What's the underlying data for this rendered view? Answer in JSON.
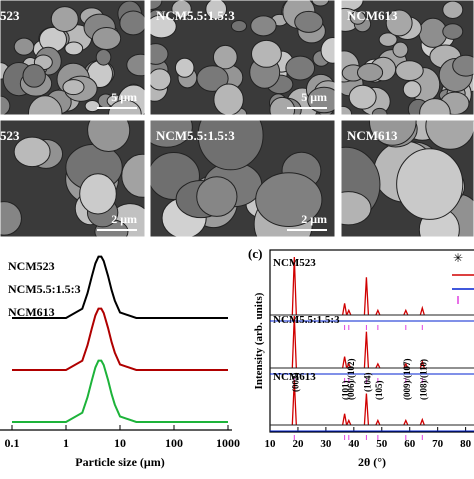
{
  "panels": [
    {
      "label": "523",
      "scale": "5 μm"
    },
    {
      "label": "NCM5.5:1.5:3",
      "scale": "5 μm"
    },
    {
      "label": "NCM613"
    },
    {
      "label": "523",
      "scale": "2 μm"
    },
    {
      "label": "NCM5.5:1.5:3",
      "scale": "2 μm"
    },
    {
      "label": "NCM613"
    }
  ],
  "chart_data": [
    {
      "type": "line",
      "xscale": "log",
      "xlabel": "Particle size (μm)",
      "x": [
        0.1,
        1,
        2,
        2.5,
        3,
        3.5,
        4,
        4.5,
        5,
        6,
        7,
        8,
        10,
        20,
        1000
      ],
      "xlim": [
        0.1,
        1000
      ],
      "xticks": [
        0.1,
        1,
        10,
        100,
        1000
      ],
      "series": [
        {
          "name": "NCM523",
          "color": "#000000",
          "values": [
            0,
            0,
            0.15,
            0.4,
            0.67,
            0.88,
            0.99,
            0.99,
            0.92,
            0.68,
            0.45,
            0.28,
            0.09,
            0,
            0
          ]
        },
        {
          "name": "NCM5.5:1.5:3",
          "color": "#b00000",
          "values": [
            0,
            0,
            0.15,
            0.4,
            0.67,
            0.88,
            0.99,
            0.99,
            0.92,
            0.68,
            0.45,
            0.28,
            0.09,
            0,
            0
          ]
        },
        {
          "name": "NCM613",
          "color": "#1db33a",
          "values": [
            0,
            0,
            0.15,
            0.4,
            0.67,
            0.88,
            0.99,
            0.99,
            0.92,
            0.68,
            0.45,
            0.28,
            0.09,
            0,
            0
          ]
        }
      ]
    },
    {
      "type": "xrd",
      "panel_label": "(c)",
      "xlabel": "2θ (°)",
      "ylabel": "Intensity (arb. units)",
      "legend_symbol": "✳",
      "xlim": [
        10,
        83
      ],
      "xticks": [
        10,
        20,
        30,
        40,
        50,
        60,
        70,
        80
      ],
      "series": [
        {
          "name": "NCM523",
          "color": "#d00000",
          "x": [
            18.7,
            36.7,
            38.2,
            44.5,
            48.6,
            58.6,
            64.5
          ],
          "values": [
            1,
            0.2,
            0.08,
            0.65,
            0.08,
            0.08,
            0.12
          ]
        },
        {
          "name": "NCM5.5:1.5:3",
          "color": "#d00000",
          "x": [
            18.7,
            36.7,
            38.2,
            44.5,
            48.6,
            58.6,
            64.5
          ],
          "values": [
            1,
            0.22,
            0.08,
            0.7,
            0.08,
            0.08,
            0.12
          ]
        },
        {
          "name": "NCM613",
          "color": "#d00000",
          "x": [
            18.7,
            36.7,
            38.2,
            44.5,
            48.6,
            58.6,
            64.5
          ],
          "values": [
            1,
            0.25,
            0.1,
            0.7,
            0.1,
            0.1,
            0.12
          ]
        }
      ],
      "peak_labels": [
        {
          "label": "(003)",
          "x": 18.7
        },
        {
          "label": "(101)",
          "x": 36.7
        },
        {
          "label": "(006)/(102)",
          "x": 38.6
        },
        {
          "label": "(104)",
          "x": 44.5
        },
        {
          "label": "(105)",
          "x": 48.6
        },
        {
          "label": "(009)/(107)",
          "x": 58.6
        },
        {
          "label": "(108)/(110)",
          "x": 64.5
        }
      ]
    }
  ]
}
